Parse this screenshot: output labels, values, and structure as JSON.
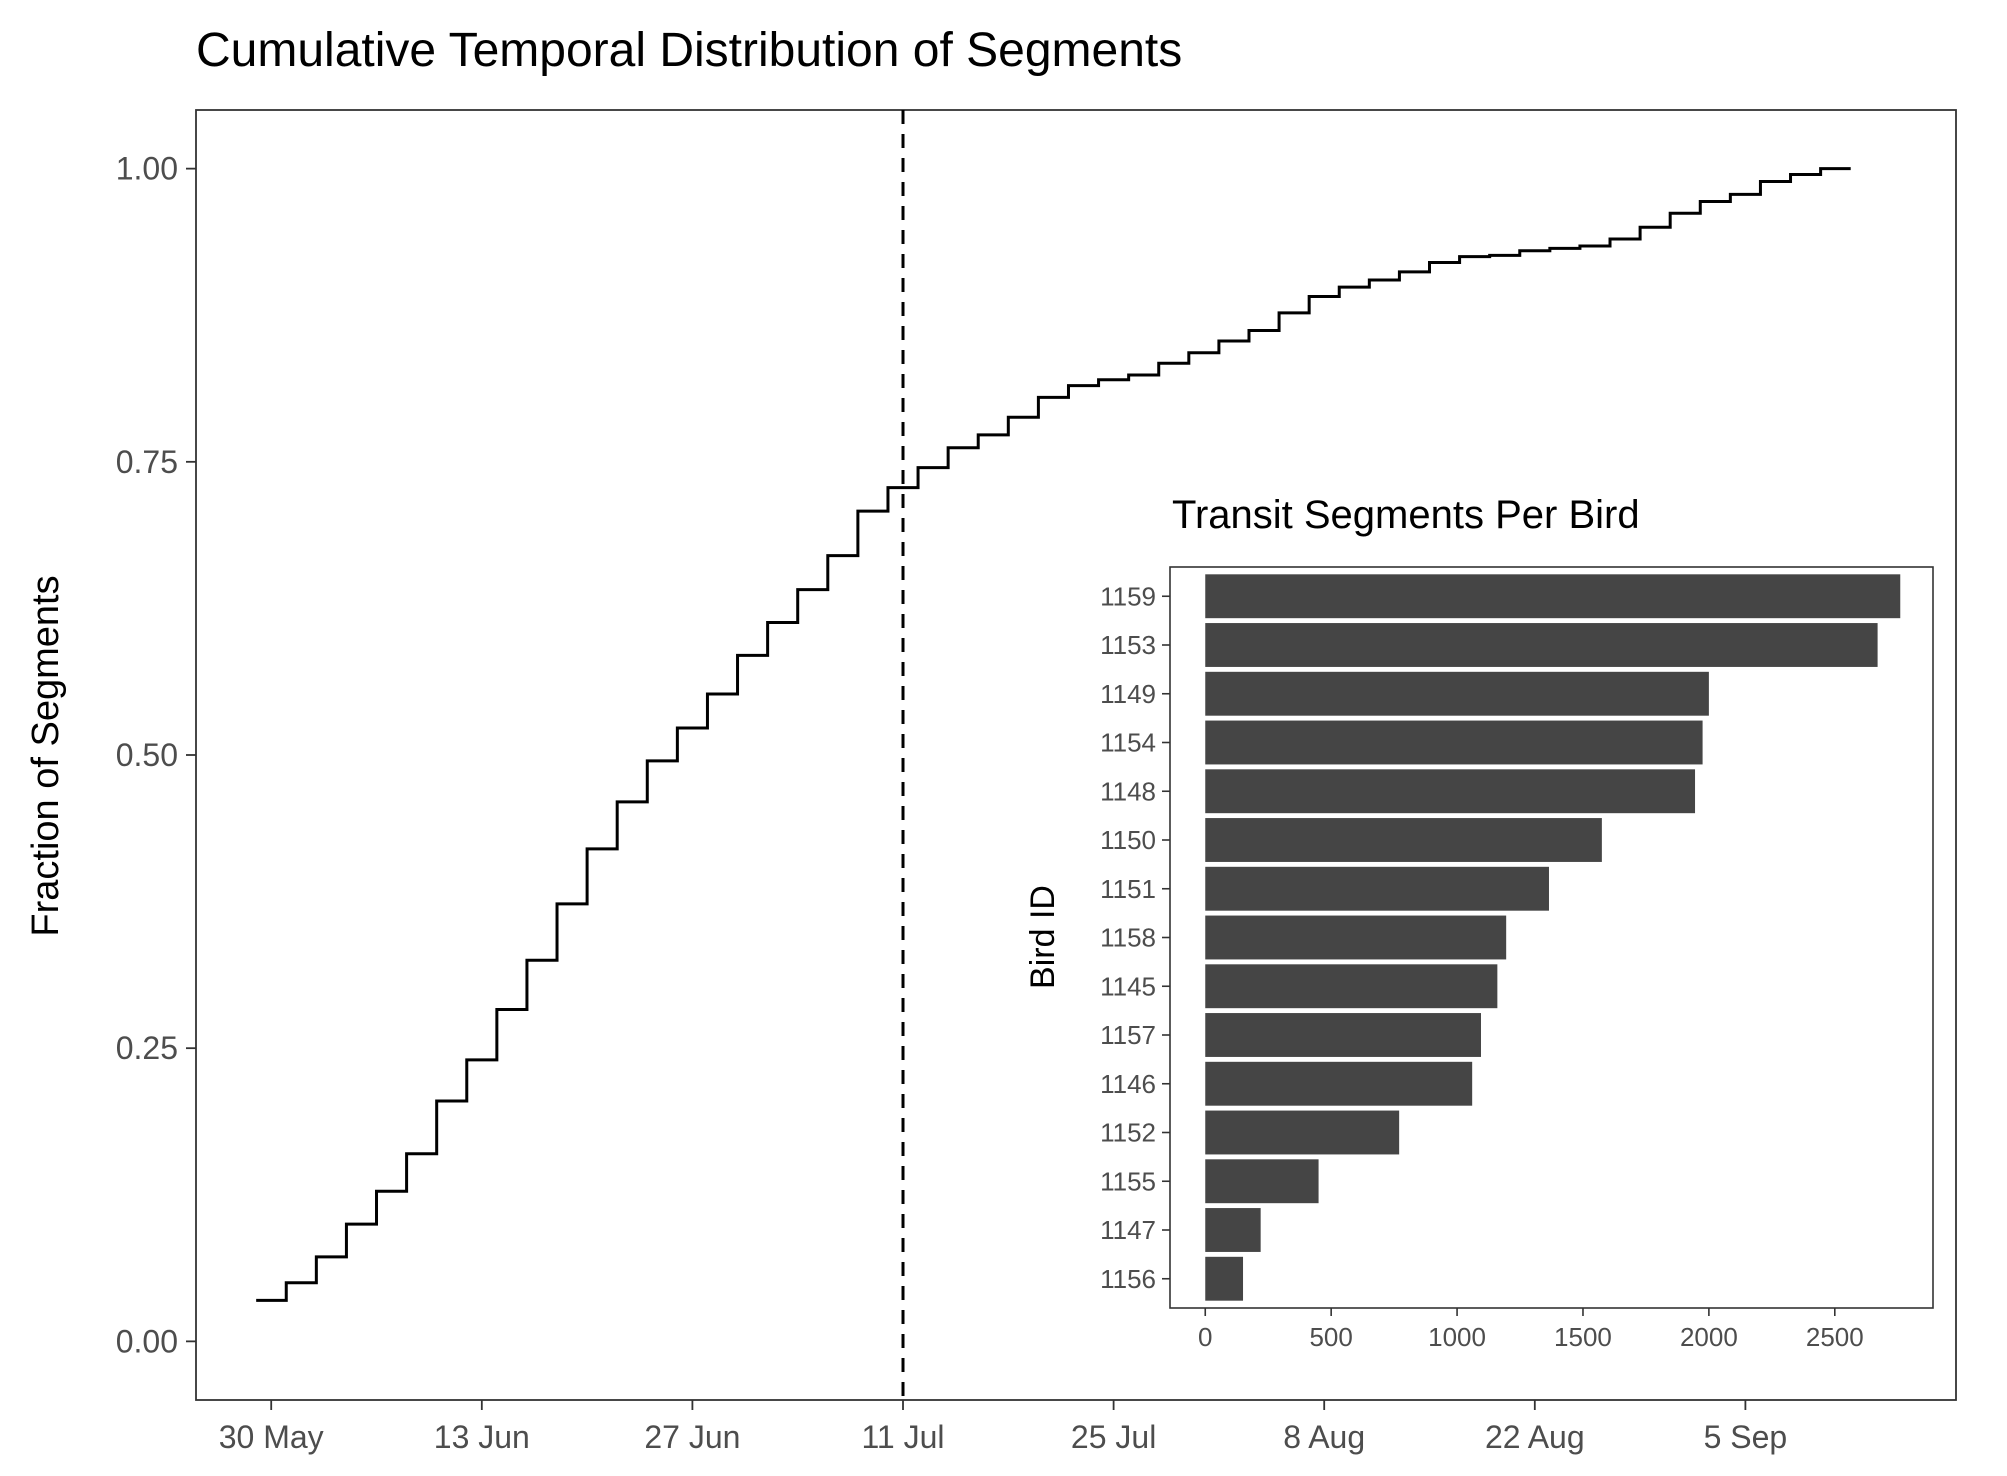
{
  "chart_data": [
    {
      "type": "line",
      "title": "Cumulative Temporal Distribution of Segments",
      "xlabel": "",
      "ylabel": "Fraction of Segments",
      "line_style": "step",
      "grid": false,
      "xlim": [
        "2024-05-25",
        "2024-09-19"
      ],
      "ylim": [
        -0.05,
        1.05
      ],
      "x_ticks": [
        "2024-05-30",
        "2024-06-13",
        "2024-06-27",
        "2024-07-11",
        "2024-07-25",
        "2024-08-08",
        "2024-08-22",
        "2024-09-05"
      ],
      "x_tick_labels": [
        "30 May",
        "13 Jun",
        "27 Jun",
        "11 Jul",
        "25 Jul",
        "8 Aug",
        "22 Aug",
        "5 Sep"
      ],
      "y_ticks": [
        0,
        0.25,
        0.5,
        0.75,
        1.0
      ],
      "y_tick_labels": [
        "0.00",
        "0.25",
        "0.50",
        "0.75",
        "1.00"
      ],
      "reference_line": {
        "orientation": "vertical",
        "x": "2024-07-11",
        "style": "dashed"
      },
      "series": [
        {
          "color": "#000000",
          "x": [
            "2024-05-29",
            "2024-05-31",
            "2024-06-02",
            "2024-06-04",
            "2024-06-06",
            "2024-06-08",
            "2024-06-10",
            "2024-06-12",
            "2024-06-14",
            "2024-06-16",
            "2024-06-18",
            "2024-06-20",
            "2024-06-22",
            "2024-06-24",
            "2024-06-26",
            "2024-06-28",
            "2024-06-30",
            "2024-07-02",
            "2024-07-04",
            "2024-07-06",
            "2024-07-08",
            "2024-07-10",
            "2024-07-12",
            "2024-07-14",
            "2024-07-16",
            "2024-07-18",
            "2024-07-20",
            "2024-07-22",
            "2024-07-24",
            "2024-07-26",
            "2024-07-28",
            "2024-07-30",
            "2024-08-01",
            "2024-08-03",
            "2024-08-05",
            "2024-08-07",
            "2024-08-09",
            "2024-08-11",
            "2024-08-13",
            "2024-08-15",
            "2024-08-17",
            "2024-08-19",
            "2024-08-21",
            "2024-08-23",
            "2024-08-25",
            "2024-08-27",
            "2024-08-29",
            "2024-08-31",
            "2024-09-02",
            "2024-09-04",
            "2024-09-06",
            "2024-09-08",
            "2024-09-10",
            "2024-09-12"
          ],
          "y": [
            0.035,
            0.05,
            0.072,
            0.1,
            0.128,
            0.16,
            0.205,
            0.24,
            0.283,
            0.325,
            0.373,
            0.42,
            0.46,
            0.495,
            0.523,
            0.552,
            0.585,
            0.613,
            0.641,
            0.67,
            0.708,
            0.728,
            0.745,
            0.762,
            0.773,
            0.788,
            0.805,
            0.815,
            0.82,
            0.824,
            0.834,
            0.843,
            0.853,
            0.862,
            0.877,
            0.891,
            0.899,
            0.905,
            0.912,
            0.92,
            0.925,
            0.926,
            0.93,
            0.932,
            0.934,
            0.94,
            0.95,
            0.962,
            0.972,
            0.978,
            0.989,
            0.995,
            1.0,
            1.0
          ]
        }
      ]
    },
    {
      "type": "bar",
      "orientation": "horizontal",
      "title": "Transit Segments Per Bird",
      "xlabel": "",
      "ylabel": "Bird ID",
      "grid": false,
      "xlim": [
        -140,
        2890
      ],
      "x_ticks": [
        0,
        500,
        1000,
        1500,
        2000,
        2500
      ],
      "x_tick_labels": [
        "0",
        "500",
        "1000",
        "1500",
        "2000",
        "2500"
      ],
      "bar_color": "#454545",
      "categories": [
        "1159",
        "1153",
        "1149",
        "1154",
        "1148",
        "1150",
        "1151",
        "1158",
        "1145",
        "1157",
        "1146",
        "1152",
        "1155",
        "1147",
        "1156"
      ],
      "values": [
        2760,
        2670,
        2000,
        1975,
        1945,
        1575,
        1365,
        1195,
        1160,
        1095,
        1060,
        770,
        450,
        220,
        150
      ]
    }
  ]
}
